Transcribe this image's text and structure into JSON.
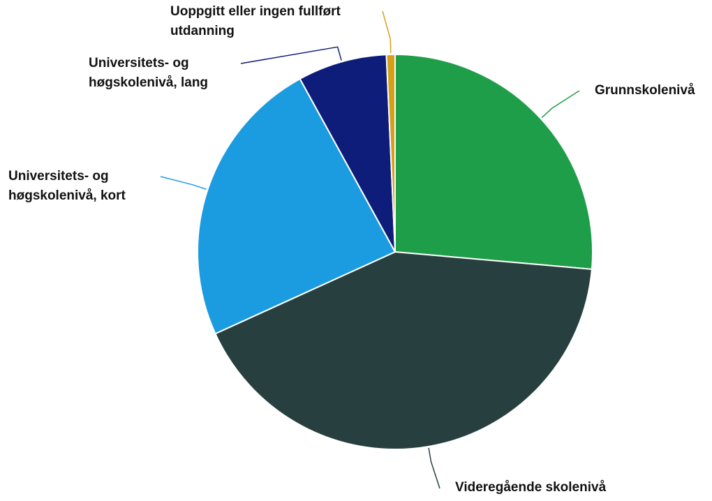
{
  "chart_data": {
    "type": "pie",
    "categories": [
      "Grunnskolenivå",
      "Videregående skolenivå",
      "Universitets- og høgskolenivå, kort",
      "Universitets- og høgskolenivå, lang",
      "Uoppgitt eller ingen fullført utdanning"
    ],
    "values": [
      26.4,
      41.8,
      23.8,
      7.3,
      0.7
    ],
    "colors": [
      "#1f9e4a",
      "#27403f",
      "#1b9be0",
      "#0f1d7a",
      "#d4a017"
    ]
  }
}
